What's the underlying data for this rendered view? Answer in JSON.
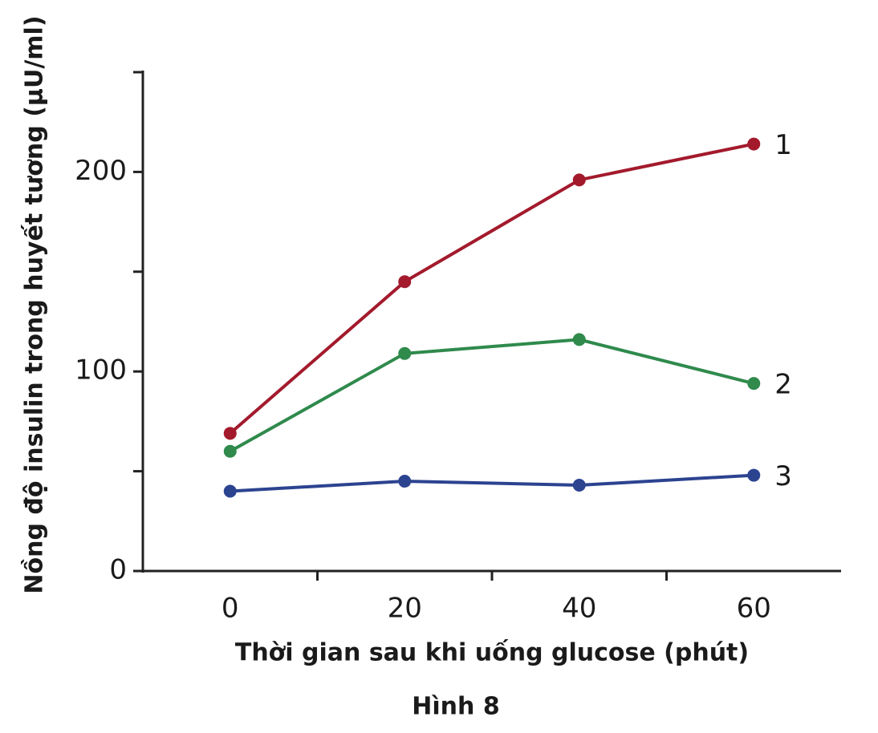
{
  "chart_data": {
    "type": "line",
    "ylabel": "Nồng độ insulin trong huyết tương (µU/ml)",
    "xlabel": "Thời gian sau khi uống glucose (phút)",
    "caption": "Hình 8",
    "x": [
      0,
      20,
      40,
      60
    ],
    "series": [
      {
        "name": "1",
        "color": "#a31a2c",
        "values": [
          69,
          145,
          196,
          214
        ]
      },
      {
        "name": "2",
        "color": "#2f8a4c",
        "values": [
          60,
          109,
          116,
          94
        ]
      },
      {
        "name": "3",
        "color": "#2c4390",
        "values": [
          40,
          45,
          43,
          48
        ]
      }
    ],
    "xlim": [
      -10,
      70
    ],
    "xticks": [
      0,
      20,
      40,
      60
    ],
    "xminorticks": [
      10,
      30,
      50
    ],
    "ylim": [
      0,
      250
    ],
    "yticks": [
      0,
      100,
      200
    ],
    "yminorticks": [
      50,
      150,
      250
    ],
    "grid": false
  }
}
